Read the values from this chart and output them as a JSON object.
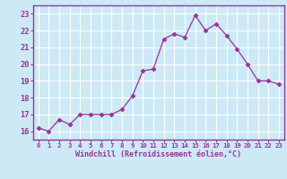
{
  "x": [
    0,
    1,
    2,
    3,
    4,
    5,
    6,
    7,
    8,
    9,
    10,
    11,
    12,
    13,
    14,
    15,
    16,
    17,
    18,
    19,
    20,
    21,
    22,
    23
  ],
  "y": [
    16.2,
    16.0,
    16.7,
    16.4,
    17.0,
    17.0,
    17.0,
    17.0,
    17.3,
    18.1,
    19.6,
    19.7,
    21.5,
    21.8,
    21.6,
    22.9,
    22.0,
    22.4,
    21.7,
    20.9,
    20.0,
    19.0,
    19.0,
    18.8
  ],
  "line_color": "#993399",
  "marker": "D",
  "marker_size": 2.5,
  "xlabel": "Windchill (Refroidissement éolien,°C)",
  "xlim": [
    -0.5,
    23.5
  ],
  "ylim": [
    15.5,
    23.5
  ],
  "yticks": [
    16,
    17,
    18,
    19,
    20,
    21,
    22,
    23
  ],
  "xticks": [
    0,
    1,
    2,
    3,
    4,
    5,
    6,
    7,
    8,
    9,
    10,
    11,
    12,
    13,
    14,
    15,
    16,
    17,
    18,
    19,
    20,
    21,
    22,
    23
  ],
  "bg_color": "#cce9f5",
  "grid_color": "#ffffff",
  "label_color": "#993399",
  "tick_color": "#993399",
  "border_color": "#993399",
  "xlabel_fontsize": 6.0,
  "xtick_fontsize": 5.2,
  "ytick_fontsize": 6.2
}
